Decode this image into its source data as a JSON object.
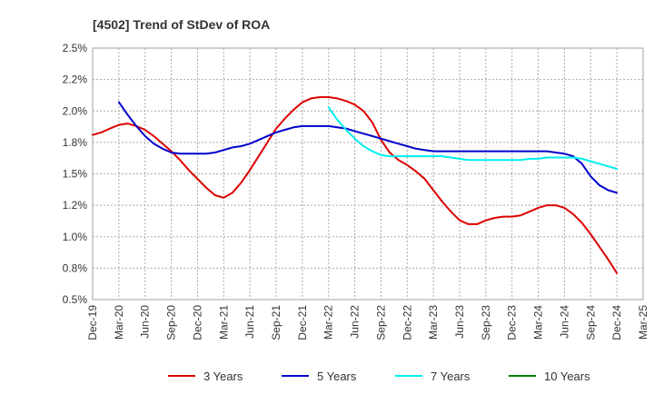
{
  "chart_data": {
    "type": "line",
    "title": "[4502]  Trend of StDev of ROA",
    "y_ticks": [
      "2.5%",
      "2.2%",
      "2.0%",
      "1.8%",
      "1.5%",
      "1.2%",
      "1.0%",
      "0.8%",
      "0.5%"
    ],
    "y_tick_values": [
      2.5,
      2.25,
      2.0,
      1.75,
      1.5,
      1.25,
      1.0,
      0.75,
      0.5
    ],
    "x_ticks": [
      "Dec-19",
      "Mar-20",
      "Jun-20",
      "Sep-20",
      "Dec-20",
      "Mar-21",
      "Jun-21",
      "Sep-21",
      "Dec-21",
      "Mar-22",
      "Jun-22",
      "Sep-22",
      "Dec-22",
      "Mar-23",
      "Jun-23",
      "Sep-23",
      "Dec-23",
      "Mar-24",
      "Jun-24",
      "Sep-24",
      "Dec-24",
      "Mar-25"
    ],
    "ylim": [
      0.5,
      2.5
    ],
    "grid": true,
    "legend_position": "bottom",
    "series": [
      {
        "name": "3 Years",
        "color": "#dd0000",
        "x": [
          "Dec-19",
          "Jan-20",
          "Feb-20",
          "Mar-20",
          "Apr-20",
          "May-20",
          "Jun-20",
          "Jul-20",
          "Aug-20",
          "Sep-20",
          "Oct-20",
          "Nov-20",
          "Dec-20",
          "Jan-21",
          "Feb-21",
          "Mar-21",
          "Apr-21",
          "May-21",
          "Jun-21",
          "Jul-21",
          "Aug-21",
          "Sep-21",
          "Oct-21",
          "Nov-21",
          "Dec-21",
          "Jan-22",
          "Feb-22",
          "Mar-22",
          "Apr-22",
          "May-22",
          "Jun-22",
          "Jul-22",
          "Aug-22",
          "Sep-22",
          "Oct-22",
          "Nov-22",
          "Dec-22",
          "Jan-23",
          "Feb-23",
          "Mar-23",
          "Apr-23",
          "May-23",
          "Jun-23",
          "Jul-23",
          "Aug-23",
          "Sep-23",
          "Oct-23",
          "Nov-23",
          "Dec-23",
          "Jan-24",
          "Feb-24",
          "Mar-24",
          "Apr-24",
          "May-24",
          "Jun-24",
          "Jul-24",
          "Aug-24",
          "Sep-24",
          "Oct-24",
          "Nov-24",
          "Dec-24"
        ],
        "values": [
          1.81,
          1.83,
          1.86,
          1.89,
          1.9,
          1.88,
          1.85,
          1.8,
          1.74,
          1.68,
          1.61,
          1.53,
          1.46,
          1.39,
          1.33,
          1.31,
          1.35,
          1.43,
          1.53,
          1.64,
          1.75,
          1.86,
          1.94,
          2.01,
          2.07,
          2.1,
          2.11,
          2.11,
          2.1,
          2.08,
          2.05,
          2.0,
          1.91,
          1.77,
          1.67,
          1.61,
          1.57,
          1.52,
          1.46,
          1.37,
          1.28,
          1.2,
          1.13,
          1.1,
          1.1,
          1.13,
          1.15,
          1.16,
          1.16,
          1.17,
          1.2,
          1.23,
          1.25,
          1.25,
          1.23,
          1.18,
          1.11,
          1.02,
          0.92,
          0.82,
          0.71
        ]
      },
      {
        "name": "5 Years",
        "color": "#0000cc",
        "x": [
          "Mar-20",
          "Apr-20",
          "May-20",
          "Jun-20",
          "Jul-20",
          "Aug-20",
          "Sep-20",
          "Oct-20",
          "Nov-20",
          "Dec-20",
          "Jan-21",
          "Feb-21",
          "Mar-21",
          "Apr-21",
          "May-21",
          "Jun-21",
          "Jul-21",
          "Aug-21",
          "Sep-21",
          "Oct-21",
          "Nov-21",
          "Dec-21",
          "Jan-22",
          "Feb-22",
          "Mar-22",
          "Apr-22",
          "May-22",
          "Jun-22",
          "Jul-22",
          "Aug-22",
          "Sep-22",
          "Oct-22",
          "Nov-22",
          "Dec-22",
          "Jan-23",
          "Feb-23",
          "Mar-23",
          "Apr-23",
          "May-23",
          "Jun-23",
          "Jul-23",
          "Aug-23",
          "Sep-23",
          "Oct-23",
          "Nov-23",
          "Dec-23",
          "Jan-24",
          "Feb-24",
          "Mar-24",
          "Apr-24",
          "May-24",
          "Jun-24",
          "Jul-24",
          "Aug-24",
          "Sep-24",
          "Oct-24",
          "Nov-24",
          "Dec-24"
        ],
        "values": [
          2.07,
          1.97,
          1.88,
          1.8,
          1.74,
          1.7,
          1.67,
          1.66,
          1.66,
          1.66,
          1.66,
          1.67,
          1.69,
          1.71,
          1.72,
          1.74,
          1.77,
          1.8,
          1.83,
          1.85,
          1.87,
          1.88,
          1.88,
          1.88,
          1.88,
          1.87,
          1.86,
          1.84,
          1.82,
          1.8,
          1.78,
          1.76,
          1.74,
          1.72,
          1.7,
          1.69,
          1.68,
          1.68,
          1.68,
          1.68,
          1.68,
          1.68,
          1.68,
          1.68,
          1.68,
          1.68,
          1.68,
          1.68,
          1.68,
          1.68,
          1.67,
          1.66,
          1.64,
          1.58,
          1.48,
          1.41,
          1.37,
          1.35
        ]
      },
      {
        "name": "7 Years",
        "color": "#00eeee",
        "x": [
          "Mar-22",
          "Apr-22",
          "May-22",
          "Jun-22",
          "Jul-22",
          "Aug-22",
          "Sep-22",
          "Oct-22",
          "Nov-22",
          "Dec-22",
          "Jan-23",
          "Feb-23",
          "Mar-23",
          "Apr-23",
          "May-23",
          "Jun-23",
          "Jul-23",
          "Aug-23",
          "Sep-23",
          "Oct-23",
          "Nov-23",
          "Dec-23",
          "Jan-24",
          "Feb-24",
          "Mar-24",
          "Apr-24",
          "May-24",
          "Jun-24",
          "Jul-24",
          "Aug-24",
          "Sep-24",
          "Oct-24",
          "Nov-24",
          "Dec-24"
        ],
        "values": [
          2.03,
          1.93,
          1.85,
          1.78,
          1.72,
          1.68,
          1.65,
          1.64,
          1.64,
          1.64,
          1.64,
          1.64,
          1.64,
          1.64,
          1.63,
          1.62,
          1.61,
          1.61,
          1.61,
          1.61,
          1.61,
          1.61,
          1.61,
          1.62,
          1.62,
          1.63,
          1.63,
          1.63,
          1.63,
          1.62,
          1.6,
          1.58,
          1.56,
          1.54
        ]
      },
      {
        "name": "10 Years",
        "color": "#008000",
        "x": [],
        "values": []
      }
    ]
  }
}
